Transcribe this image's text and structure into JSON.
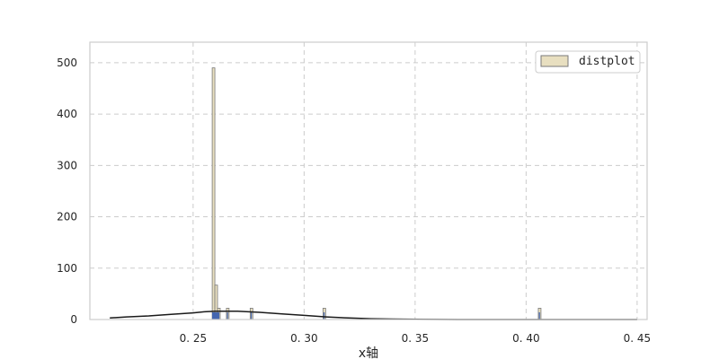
{
  "chart_data": {
    "type": "bar",
    "title": "",
    "xlabel": "x轴",
    "ylabel": "",
    "xlim": [
      0.2035,
      0.4545
    ],
    "ylim": [
      0,
      540
    ],
    "grid": true,
    "legend_position": "top-right",
    "x_ticks": [
      0.25,
      0.3,
      0.35,
      0.4,
      0.45
    ],
    "x_tick_labels": [
      "0. 25",
      "0. 30",
      "0. 35",
      "0. 40",
      "0. 45"
    ],
    "y_ticks": [
      0,
      100,
      200,
      300,
      400,
      500
    ],
    "y_tick_labels": [
      "0",
      "100",
      "200",
      "300",
      "400",
      "500"
    ],
    "series": [
      {
        "name": "distplot",
        "kind": "histogram",
        "color": "#e8dfc0",
        "edge_color": "#7a7a7a",
        "bins": [
          {
            "x0": 0.2586,
            "x1": 0.2598,
            "count": 490
          },
          {
            "x0": 0.2598,
            "x1": 0.261,
            "count": 67
          },
          {
            "x0": 0.261,
            "x1": 0.2622,
            "count": 22
          },
          {
            "x0": 0.265,
            "x1": 0.2662,
            "count": 22
          },
          {
            "x0": 0.2757,
            "x1": 0.2769,
            "count": 22
          },
          {
            "x0": 0.3085,
            "x1": 0.3097,
            "count": 22
          },
          {
            "x0": 0.4055,
            "x1": 0.4067,
            "count": 22
          }
        ]
      },
      {
        "name": "",
        "kind": "kde",
        "color": "#1a1a1a",
        "x": [
          0.2125,
          0.22,
          0.23,
          0.24,
          0.25,
          0.255,
          0.26,
          0.265,
          0.27,
          0.275,
          0.28,
          0.29,
          0.3,
          0.31,
          0.32,
          0.33,
          0.34,
          0.35,
          0.36,
          0.38,
          0.4,
          0.42,
          0.45
        ],
        "y": [
          3,
          5,
          7,
          10,
          13,
          15,
          16,
          16,
          16,
          15,
          14,
          11,
          8,
          5,
          3,
          1.5,
          0.8,
          0.3,
          0.1,
          0,
          0,
          0,
          0
        ]
      },
      {
        "name": "",
        "kind": "rug",
        "color": "#4466b0",
        "x": [
          0.2588,
          0.259,
          0.2592,
          0.2594,
          0.2596,
          0.2598,
          0.26,
          0.2603,
          0.2606,
          0.2609,
          0.2613,
          0.2616,
          0.2655,
          0.2762,
          0.309,
          0.406
        ],
        "height": 8
      }
    ]
  }
}
